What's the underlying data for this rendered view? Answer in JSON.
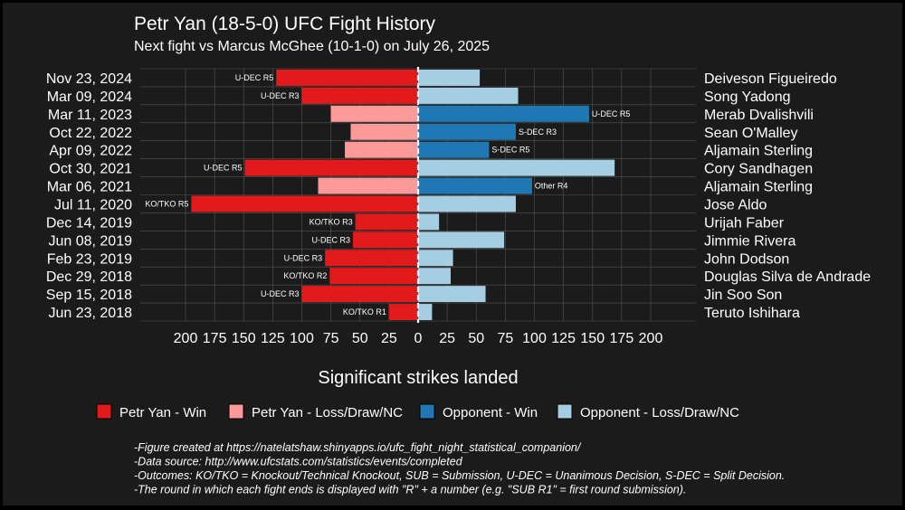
{
  "chart_data": {
    "type": "bar",
    "orientation": "horizontal-diverging",
    "title": "Petr Yan (18-5-0) UFC Fight History",
    "subtitle": "Next fight vs Marcus McGhee (10-1-0) on July 26, 2025",
    "xlabel": "Significant strikes landed",
    "xlim": [
      -200,
      200
    ],
    "xticks": [
      -200,
      -175,
      -150,
      -125,
      -100,
      -75,
      -50,
      -25,
      0,
      25,
      50,
      75,
      100,
      125,
      150,
      175,
      200
    ],
    "xtick_labels": [
      "200",
      "175",
      "150",
      "125",
      "100",
      "75",
      "50",
      "25",
      "0",
      "25",
      "50",
      "75",
      "100",
      "125",
      "150",
      "175",
      "200"
    ],
    "grid": true,
    "legend_position": "bottom",
    "colors": {
      "yan_win": "#e31a1c",
      "yan_loss": "#fb9a99",
      "opp_win": "#1f78b4",
      "opp_loss": "#a6cee3",
      "background": "#1b1b1b",
      "grid": "#555555",
      "text": "#ffffff"
    },
    "legend": [
      {
        "label": "Petr Yan - Win",
        "color": "#e31a1c"
      },
      {
        "label": "Petr Yan - Loss/Draw/NC",
        "color": "#fb9a99"
      },
      {
        "label": "Opponent - Win",
        "color": "#1f78b4"
      },
      {
        "label": "Opponent - Loss/Draw/NC",
        "color": "#a6cee3"
      }
    ],
    "fights": [
      {
        "date": "Nov 23, 2024",
        "opponent": "Deiveson Figueiredo",
        "yan": 122,
        "opp": 53,
        "winner": "yan",
        "result": "U-DEC R5"
      },
      {
        "date": "Mar 09, 2024",
        "opponent": "Song Yadong",
        "yan": 100,
        "opp": 86,
        "winner": "yan",
        "result": "U-DEC R3"
      },
      {
        "date": "Mar 11, 2023",
        "opponent": "Merab Dvalishvili",
        "yan": 75,
        "opp": 147,
        "winner": "opp",
        "result": "U-DEC R5"
      },
      {
        "date": "Oct 22, 2022",
        "opponent": "Sean O'Malley",
        "yan": 58,
        "opp": 84,
        "winner": "opp",
        "result": "S-DEC R3"
      },
      {
        "date": "Apr 09, 2022",
        "opponent": "Aljamain Sterling",
        "yan": 63,
        "opp": 61,
        "winner": "opp",
        "result": "S-DEC R5"
      },
      {
        "date": "Oct 30, 2021",
        "opponent": "Cory Sandhagen",
        "yan": 149,
        "opp": 169,
        "winner": "yan",
        "result": "U-DEC R5"
      },
      {
        "date": "Mar 06, 2021",
        "opponent": "Aljamain Sterling",
        "yan": 86,
        "opp": 98,
        "winner": "opp",
        "result": "Other R4"
      },
      {
        "date": "Jul 11, 2020",
        "opponent": "Jose Aldo",
        "yan": 195,
        "opp": 84,
        "winner": "yan",
        "result": "KO/TKO R5"
      },
      {
        "date": "Dec 14, 2019",
        "opponent": "Urijah Faber",
        "yan": 54,
        "opp": 18,
        "winner": "yan",
        "result": "KO/TKO R3"
      },
      {
        "date": "Jun 08, 2019",
        "opponent": "Jimmie Rivera",
        "yan": 56,
        "opp": 74,
        "winner": "yan",
        "result": "U-DEC R3"
      },
      {
        "date": "Feb 23, 2019",
        "opponent": "John Dodson",
        "yan": 80,
        "opp": 30,
        "winner": "yan",
        "result": "U-DEC R3"
      },
      {
        "date": "Dec 29, 2018",
        "opponent": "Douglas Silva de Andrade",
        "yan": 76,
        "opp": 28,
        "winner": "yan",
        "result": "KO/TKO R2"
      },
      {
        "date": "Sep 15, 2018",
        "opponent": "Jin Soo Son",
        "yan": 100,
        "opp": 58,
        "winner": "yan",
        "result": "U-DEC R3"
      },
      {
        "date": "Jun 23, 2018",
        "opponent": "Teruto Ishihara",
        "yan": 25,
        "opp": 12,
        "winner": "yan",
        "result": "KO/TKO R1"
      }
    ],
    "footnotes": [
      "-Figure created at https://natelatshaw.shinyapps.io/ufc_fight_night_statistical_companion/",
      "-Data source: http://www.ufcstats.com/statistics/events/completed",
      "-Outcomes: KO/TKO = Knockout/Technical Knockout, SUB = Submission, U-DEC = Unanimous Decision, S-DEC = Split Decision.",
      "-The round in which each fight ends is displayed with \"R\" + a number (e.g. \"SUB R1\" = first round submission)."
    ]
  }
}
